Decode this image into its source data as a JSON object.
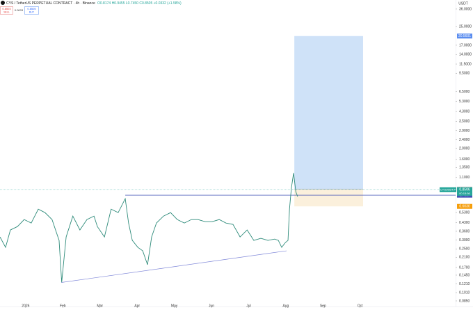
{
  "header": {
    "title": "CYS / TetherUS PERPETUAL CONTRACT · 4h · Binance",
    "ohlc": "O0.8174 H0.9455 L0.7450 C0.8505 +0.0332 (+1.58%)",
    "sell_price": "0.8503",
    "sell": "SELL",
    "spread": "0.0003",
    "buy_price": "0.8505",
    "buy": "BUY",
    "currency": "USDT"
  },
  "chart_data": {
    "type": "line",
    "log_y": true,
    "xlim": [
      -0.69,
      11.57
    ],
    "ylim": [
      0.0757,
      43.4
    ],
    "xticks": [
      {
        "value": 0,
        "label": "2026"
      },
      {
        "value": 1,
        "label": "Feb"
      },
      {
        "value": 2,
        "label": "Mar"
      },
      {
        "value": 3,
        "label": "Apr"
      },
      {
        "value": 4,
        "label": "May"
      },
      {
        "value": 5,
        "label": "Jun"
      },
      {
        "value": 6,
        "label": "Jul"
      },
      {
        "value": 7,
        "label": "Aug"
      },
      {
        "value": 8,
        "label": "Sep"
      },
      {
        "value": 9,
        "label": "Oct"
      }
    ],
    "yticks": [
      {
        "value": 36,
        "label": "36.0000"
      },
      {
        "value": 25,
        "label": "25.0000"
      },
      {
        "value": 17,
        "label": "17.0000"
      },
      {
        "value": 14,
        "label": "14.0000"
      },
      {
        "value": 11.5,
        "label": "11.5000"
      },
      {
        "value": 9.5,
        "label": "9.5000"
      },
      {
        "value": 6.5,
        "label": "6.5000"
      },
      {
        "value": 5.3,
        "label": "5.3000"
      },
      {
        "value": 4.3,
        "label": "4.3000"
      },
      {
        "value": 3.5,
        "label": "3.5000"
      },
      {
        "value": 2.9,
        "label": "2.9000"
      },
      {
        "value": 2.4,
        "label": "2.4000"
      },
      {
        "value": 2,
        "label": "2.0000"
      },
      {
        "value": 1.6,
        "label": "1.6000"
      },
      {
        "value": 1.35,
        "label": "1.3500"
      },
      {
        "value": 1.1,
        "label": "1.1000"
      },
      {
        "value": 0.53,
        "label": "0.5300"
      },
      {
        "value": 0.43,
        "label": "0.4300"
      },
      {
        "value": 0.36,
        "label": "0.3600"
      },
      {
        "value": 0.3,
        "label": "0.3000"
      },
      {
        "value": 0.25,
        "label": "0.2500"
      },
      {
        "value": 0.21,
        "label": "0.2100"
      },
      {
        "value": 0.17,
        "label": "0.1700"
      },
      {
        "value": 0.145,
        "label": "0.1450"
      },
      {
        "value": 0.121,
        "label": "0.1210"
      },
      {
        "value": 0.101,
        "label": "0.1010"
      },
      {
        "value": 0.085,
        "label": "0.0850"
      }
    ],
    "series": [
      {
        "name": "CYSUSDT.P",
        "color": "#2e8b7a",
        "x": [
          -0.69,
          -0.54,
          -0.41,
          -0.22,
          -0.04,
          0.15,
          0.34,
          0.52,
          0.71,
          0.9,
          0.97,
          1.09,
          1.27,
          1.46,
          1.65,
          1.84,
          1.93,
          2.12,
          2.3,
          2.49,
          2.68,
          2.77,
          2.87,
          3.02,
          3.15,
          3.28,
          3.39,
          3.52,
          3.71,
          3.9,
          4.08,
          4.27,
          4.46,
          4.64,
          4.83,
          5.02,
          5.21,
          5.39,
          5.58,
          5.77,
          5.96,
          6.14,
          6.33,
          6.52,
          6.7,
          6.8,
          6.89,
          6.99,
          7.06,
          7.1,
          7.15,
          7.21,
          7.27,
          7.32
        ],
        "values": [
          0.32,
          0.258,
          0.37,
          0.397,
          0.459,
          0.427,
          0.569,
          0.53,
          0.459,
          0.298,
          0.125,
          0.32,
          0.493,
          0.37,
          0.459,
          0.493,
          0.397,
          0.32,
          0.569,
          0.53,
          0.707,
          0.427,
          0.298,
          0.258,
          0.24,
          0.18,
          0.32,
          0.427,
          0.493,
          0.53,
          0.459,
          0.427,
          0.459,
          0.459,
          0.439,
          0.439,
          0.459,
          0.427,
          0.415,
          0.32,
          0.37,
          0.298,
          0.311,
          0.298,
          0.306,
          0.298,
          0.258,
          0.285,
          0.298,
          0.569,
          0.877,
          1.205,
          0.816,
          0.738
        ]
      }
    ],
    "hline": {
      "from": 2.68,
      "value": 0.7607,
      "label": "0.7607"
    },
    "trend": {
      "x": [
        0.96,
        7.02
      ],
      "y": [
        0.1245,
        0.24
      ]
    },
    "position": {
      "x": [
        7.23,
        9.08
      ],
      "target": {
        "value": 20.5601,
        "label": "20.5601"
      },
      "entry": {
        "value": 0.8589,
        "label": "0.8589"
      },
      "stop": {
        "value": 0.603,
        "label": "0.6030"
      }
    },
    "last": {
      "symbol": "CYSUSDT.P",
      "value": 0.8506,
      "label": "0.8506",
      "countdown": "00:15:56"
    }
  }
}
